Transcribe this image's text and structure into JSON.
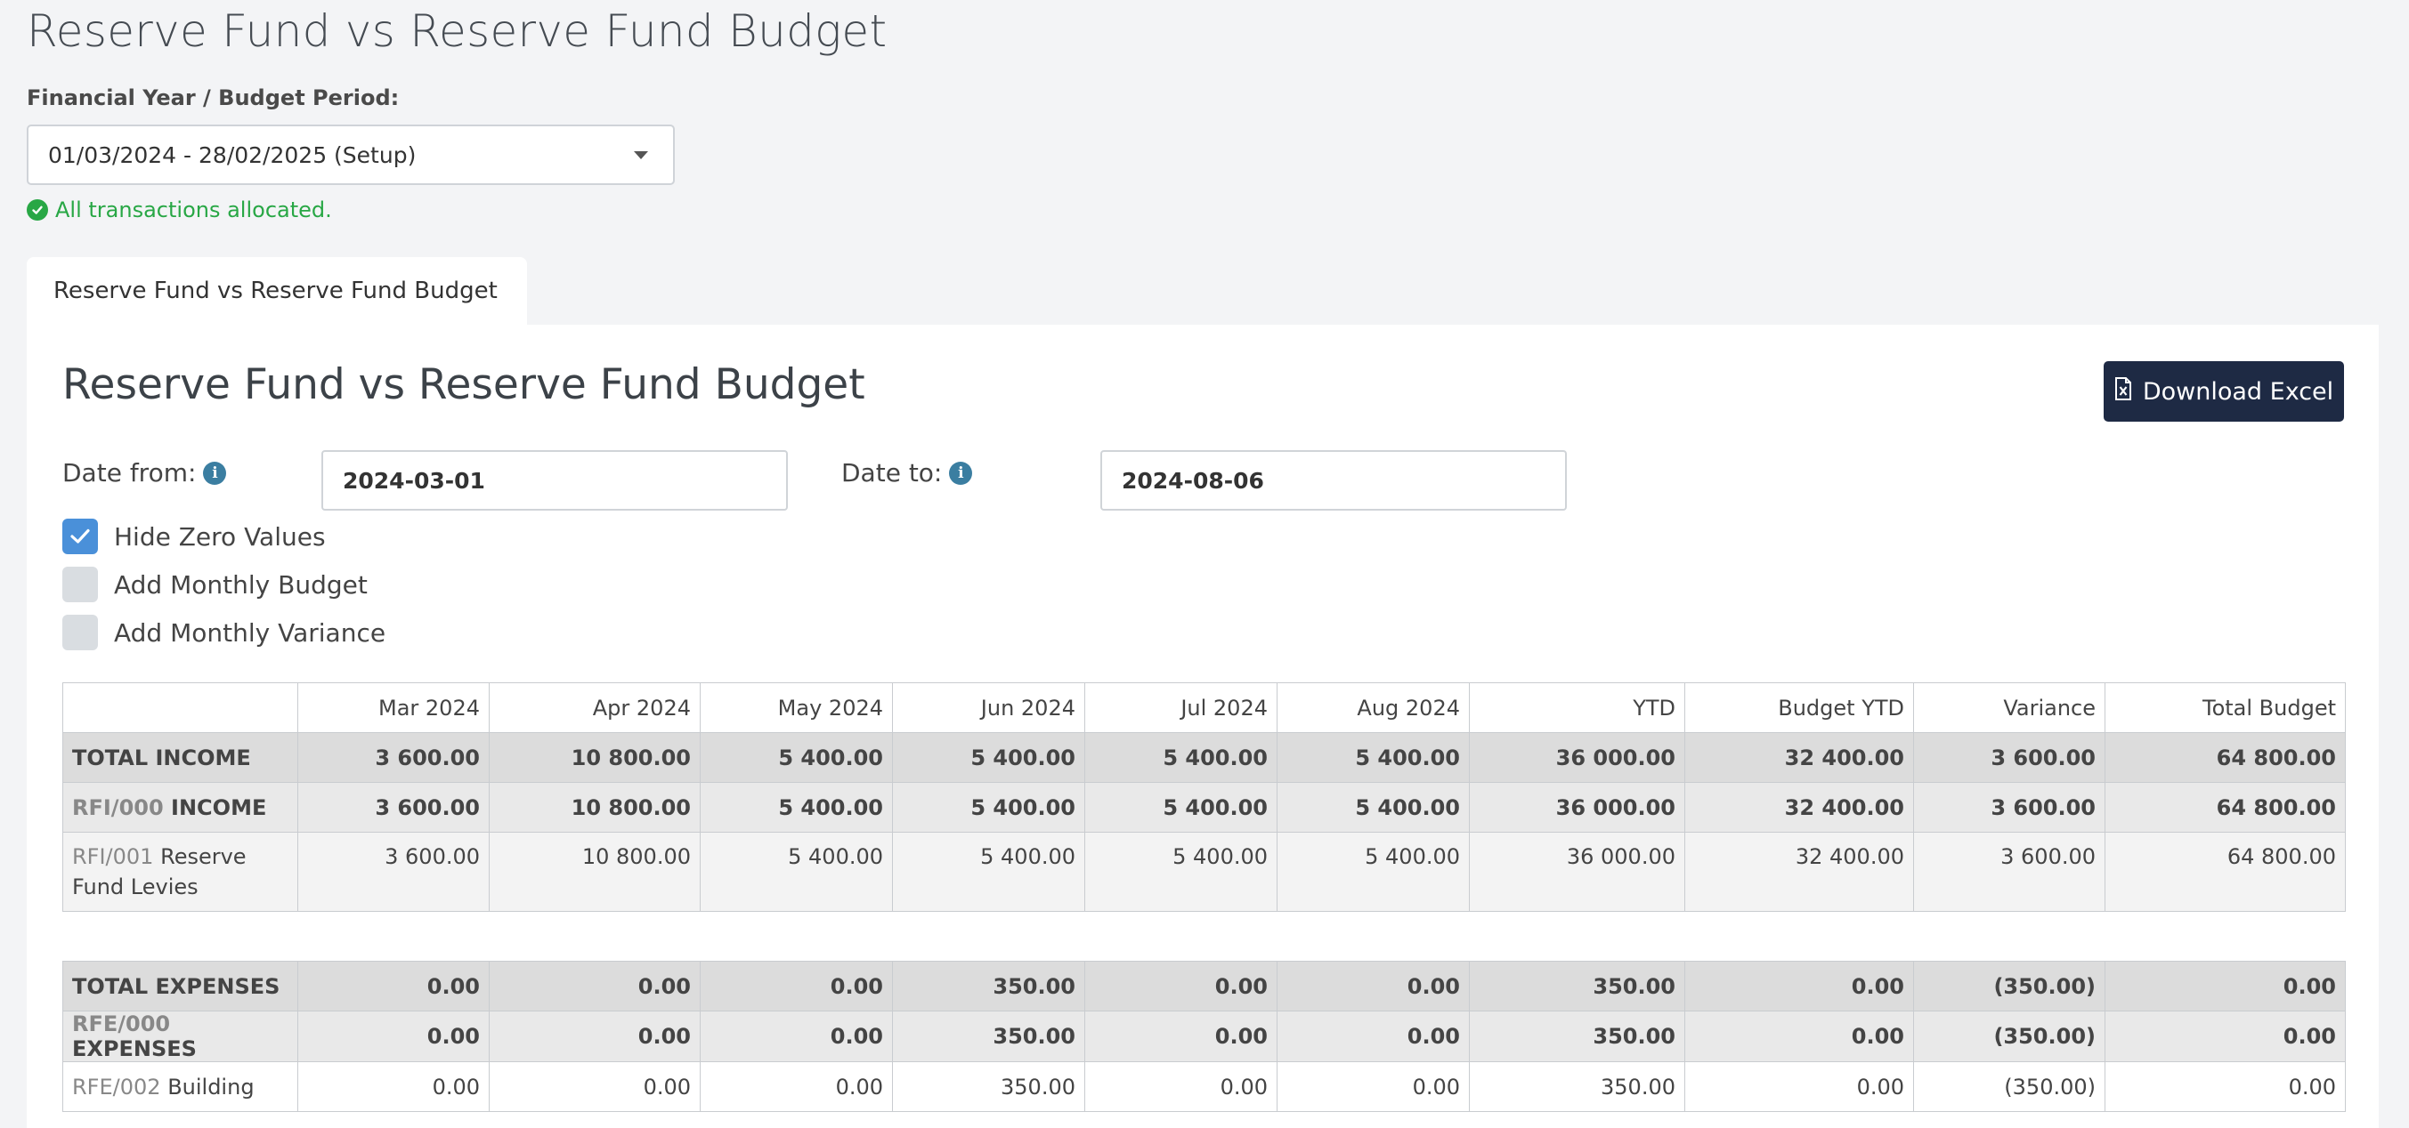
{
  "page": {
    "title": "Reserve Fund vs Reserve Fund Budget"
  },
  "filters": {
    "fy_label": "Financial Year / Budget Period:",
    "fy_value": "01/03/2024 - 28/02/2025 (Setup)",
    "status": "All transactions allocated."
  },
  "tab": {
    "label": "Reserve Fund vs Reserve Fund Budget"
  },
  "panel": {
    "title": "Reserve Fund vs Reserve Fund Budget",
    "download_label": "Download Excel",
    "date_from_label": "Date from:",
    "date_from_value": "2024-03-01",
    "date_to_label": "Date to:",
    "date_to_value": "2024-08-06",
    "options": [
      {
        "label": "Hide Zero Values",
        "checked": true
      },
      {
        "label": "Add Monthly Budget",
        "checked": false
      },
      {
        "label": "Add Monthly Variance",
        "checked": false
      }
    ]
  },
  "table": {
    "headers": [
      "",
      "Mar 2024",
      "Apr 2024",
      "May 2024",
      "Jun 2024",
      "Jul 2024",
      "Aug 2024",
      "YTD",
      "Budget YTD",
      "Variance",
      "Total Budget"
    ],
    "income": {
      "total": {
        "label": "TOTAL INCOME",
        "values": [
          "3 600.00",
          "10 800.00",
          "5 400.00",
          "5 400.00",
          "5 400.00",
          "5 400.00",
          "36 000.00",
          "32 400.00",
          "3 600.00",
          "64 800.00"
        ]
      },
      "group": {
        "code": "RFI/000",
        "name": "INCOME",
        "values": [
          "3 600.00",
          "10 800.00",
          "5 400.00",
          "5 400.00",
          "5 400.00",
          "5 400.00",
          "36 000.00",
          "32 400.00",
          "3 600.00",
          "64 800.00"
        ]
      },
      "line": {
        "code": "RFI/001",
        "name": "Reserve Fund Levies",
        "values": [
          "3 600.00",
          "10 800.00",
          "5 400.00",
          "5 400.00",
          "5 400.00",
          "5 400.00",
          "36 000.00",
          "32 400.00",
          "3 600.00",
          "64 800.00"
        ]
      }
    },
    "expenses": {
      "total": {
        "label": "TOTAL EXPENSES",
        "values": [
          "0.00",
          "0.00",
          "0.00",
          "350.00",
          "0.00",
          "0.00",
          "350.00",
          "0.00",
          "(350.00)",
          "0.00"
        ]
      },
      "group": {
        "code": "RFE/000",
        "name": "EXPENSES",
        "values": [
          "0.00",
          "0.00",
          "0.00",
          "350.00",
          "0.00",
          "0.00",
          "350.00",
          "0.00",
          "(350.00)",
          "0.00"
        ]
      },
      "line": {
        "code": "RFE/002",
        "name": "Building",
        "values": [
          "0.00",
          "0.00",
          "0.00",
          "350.00",
          "0.00",
          "0.00",
          "350.00",
          "0.00",
          "(350.00)",
          "0.00"
        ]
      }
    }
  },
  "colors": {
    "positive": "#2e8b57",
    "negative": "#c0141b",
    "button": "#1e2a44",
    "checkbox_on": "#4a90d9"
  }
}
